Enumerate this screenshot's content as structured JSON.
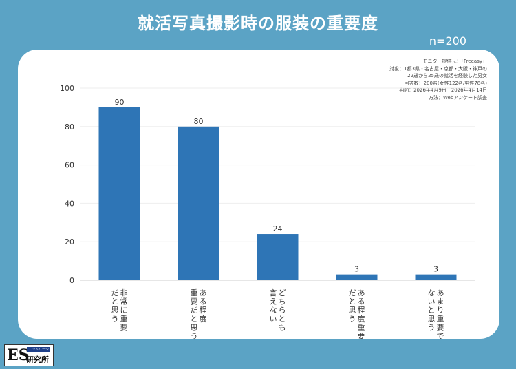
{
  "header": {
    "title": "就活写真撮影時の服装の重要度",
    "n_label": "n=200"
  },
  "meta": {
    "lines": [
      "モニター提供元：「Freeasy」",
      "対象：1都3県・名古屋・京都・大阪・神戸の",
      "22歳から25歳の就活を経験した男女",
      "回答数：200名(女性122名/男性78名)",
      "期間：2026年4月9日　2026年4月14日",
      "方法：Webアンケート調査"
    ]
  },
  "logo": {
    "main": "ES",
    "sub": "エントリーシート",
    "lab": "研究所"
  },
  "colors": {
    "background": "#5ba3c5",
    "bar": "#2e75b6",
    "card": "#ffffff"
  },
  "chart_data": {
    "type": "bar",
    "categories": [
      "非常に重要だと思う",
      "ある程度重要だと思う",
      "どちらとも言えない",
      "ある程度重要だと思う",
      "あまり重要ではないと思う"
    ],
    "category_columns": [
      [
        "非常に重要",
        "だと思う"
      ],
      [
        "ある程度",
        "重要だと思う"
      ],
      [
        "どちらとも",
        "言えない"
      ],
      [
        "ある程度重要",
        "だと思う"
      ],
      [
        "あまり重要では",
        "ないと思う"
      ]
    ],
    "values": [
      90,
      80,
      24,
      3,
      3
    ],
    "ylim": [
      0,
      100
    ],
    "yticks": [
      0,
      20,
      40,
      60,
      80,
      100
    ],
    "ytick_labels": [
      "0",
      "20",
      "40",
      "60",
      "80",
      "100"
    ],
    "data_labels": [
      "90",
      "80",
      "24",
      "3",
      "3"
    ],
    "grid": true,
    "title": "",
    "xlabel": "",
    "ylabel": ""
  }
}
